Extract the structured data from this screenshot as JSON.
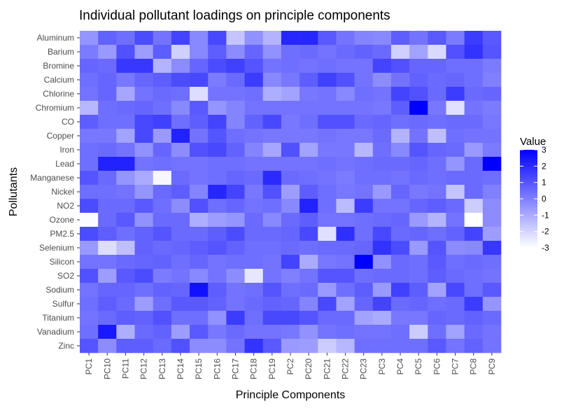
{
  "chart_data": {
    "type": "heatmap",
    "title": "Individual pollutant loadings on principle components",
    "xlabel": "Principle Components",
    "ylabel": "Pollutants",
    "x_categories": [
      "PC1",
      "PC10",
      "PC11",
      "PC12",
      "PC13",
      "PC14",
      "PC15",
      "PC16",
      "PC17",
      "PC18",
      "PC19",
      "PC2",
      "PC20",
      "PC21",
      "PC22",
      "PC23",
      "PC3",
      "PC4",
      "PC5",
      "PC6",
      "PC7",
      "PC8",
      "PC9"
    ],
    "y_categories": [
      "Aluminum",
      "Barium",
      "Bromine",
      "Calcium",
      "Chlorine",
      "Chromium",
      "CO",
      "Copper",
      "Iron",
      "Lead",
      "Manganese",
      "Nickel",
      "NO2",
      "Ozone",
      "PM2.5",
      "Selenium",
      "Silicon",
      "SO2",
      "Sodium",
      "Sulfur",
      "Titanium",
      "Vanadium",
      "Zinc"
    ],
    "values": [
      [
        -0.5,
        0.7,
        0.4,
        1.2,
        0.3,
        1.4,
        -0.2,
        1.3,
        -1.6,
        -0.4,
        -1.2,
        2.1,
        2.1,
        0.9,
        0.3,
        -0.1,
        -0.2,
        0.8,
        0.3,
        0.9,
        0.1,
        1.6,
        0.9
      ],
      [
        0.1,
        -0.6,
        1.1,
        -0.7,
        0.8,
        -1.9,
        -0.2,
        0.8,
        -0.3,
        0.6,
        -0.4,
        0.4,
        0.5,
        0.3,
        0.5,
        0.7,
        0.5,
        -1.9,
        -0.8,
        -2.1,
        1.1,
        1.8,
        1.0
      ],
      [
        0.6,
        0.5,
        1.7,
        1.7,
        -1.2,
        -0.3,
        0.6,
        1.2,
        1.5,
        1.0,
        0.3,
        0.4,
        0.3,
        0.4,
        0.3,
        0.3,
        1.4,
        1.1,
        0.6,
        0.6,
        0.4,
        0.4,
        0.1
      ],
      [
        0.4,
        0.6,
        0.2,
        0.6,
        0.8,
        1.2,
        1.3,
        0.1,
        0.5,
        1.6,
        -0.2,
        0.2,
        0.8,
        1.5,
        1.1,
        0.3,
        -0.3,
        0.3,
        0.7,
        0.5,
        0.6,
        0.4,
        0.0
      ],
      [
        0.3,
        0.6,
        -0.9,
        0.3,
        0.5,
        0.4,
        -2.2,
        0.3,
        0.3,
        0.4,
        -1.1,
        -0.8,
        0.2,
        0.3,
        -0.2,
        0.4,
        0.3,
        1.4,
        1.1,
        0.5,
        1.6,
        0.5,
        0.6
      ],
      [
        -1.3,
        0.4,
        0.5,
        0.6,
        0.4,
        -0.2,
        0.9,
        -0.5,
        -0.1,
        0.3,
        0.3,
        0.3,
        0.3,
        0.3,
        0.3,
        0.3,
        0.2,
        0.8,
        3.0,
        0.2,
        -2.3,
        0.3,
        0.1
      ],
      [
        0.8,
        0.4,
        0.4,
        1.3,
        1.5,
        0.4,
        0.8,
        1.4,
        -0.1,
        0.7,
        1.3,
        0.2,
        0.4,
        1.1,
        1.1,
        0.5,
        0.6,
        0.4,
        0.5,
        0.4,
        0.5,
        0.5,
        0.2
      ],
      [
        0.2,
        0.2,
        -0.8,
        1.3,
        -0.6,
        2.2,
        0.3,
        1.0,
        0.4,
        0.3,
        0.2,
        0.2,
        0.2,
        0.3,
        0.2,
        0.2,
        0.5,
        -1.2,
        0.3,
        -1.5,
        0.4,
        0.3,
        0.3
      ],
      [
        0.4,
        0.5,
        0.3,
        -0.4,
        0.6,
        -0.3,
        1.1,
        1.3,
        0.7,
        -0.1,
        -0.9,
        1.1,
        -0.8,
        0.2,
        0.2,
        -1.3,
        0.4,
        -0.2,
        1.0,
        0.6,
        0.5,
        -0.6,
        0.1
      ],
      [
        0.4,
        2.2,
        2.2,
        0.3,
        0.4,
        0.3,
        0.3,
        0.4,
        0.4,
        0.3,
        0.3,
        0.3,
        0.3,
        0.4,
        0.3,
        0.4,
        0.5,
        0.5,
        0.6,
        0.4,
        -0.5,
        0.5,
        3.1
      ],
      [
        1.0,
        0.5,
        -0.5,
        -1.0,
        -2.8,
        0.5,
        0.3,
        0.4,
        0.6,
        0.5,
        2.0,
        0.5,
        0.4,
        0.3,
        0.1,
        0.4,
        0.4,
        0.3,
        0.5,
        0.4,
        0.5,
        0.5,
        0.4
      ],
      [
        0.4,
        0.4,
        0.3,
        -0.5,
        0.5,
        0.8,
        -0.1,
        2.1,
        1.4,
        0.2,
        1.1,
        -0.7,
        0.8,
        0.4,
        0.2,
        0.3,
        -0.6,
        0.6,
        0.2,
        0.3,
        -1.6,
        0.5,
        0.0
      ],
      [
        1.2,
        0.5,
        0.5,
        0.9,
        0.4,
        -0.3,
        1.1,
        0.4,
        0.6,
        0.3,
        0.4,
        -0.2,
        2.2,
        0.4,
        -1.4,
        1.6,
        0.3,
        0.3,
        0.6,
        0.8,
        0.5,
        -1.8,
        -0.3
      ],
      [
        -2.9,
        0.5,
        0.9,
        -0.4,
        0.5,
        0.5,
        -1.1,
        -0.7,
        -0.5,
        0.5,
        -0.2,
        0.5,
        0.8,
        0.3,
        0.3,
        0.4,
        0.5,
        0.6,
        -0.6,
        -1.2,
        0.3,
        -3.0,
        -0.3
      ],
      [
        1.2,
        0.8,
        0.4,
        0.7,
        1.0,
        0.5,
        0.5,
        0.8,
        1.2,
        0.5,
        0.5,
        0.6,
        1.3,
        -2.3,
        1.9,
        0.4,
        1.3,
        0.5,
        0.6,
        0.4,
        0.7,
        1.4,
        -0.7
      ],
      [
        -0.6,
        -2.2,
        -1.5,
        0.7,
        0.5,
        0.6,
        0.8,
        1.0,
        0.7,
        0.4,
        0.4,
        0.5,
        0.4,
        0.5,
        0.5,
        0.6,
        1.8,
        1.2,
        -0.6,
        1.0,
        -0.3,
        -0.2,
        1.7
      ],
      [
        0.3,
        0.3,
        0.5,
        0.6,
        0.7,
        0.4,
        0.6,
        0.3,
        0.4,
        0.4,
        0.3,
        1.4,
        -1.0,
        0.2,
        0.3,
        3.0,
        -0.4,
        0.5,
        0.4,
        0.9,
        0.4,
        0.5,
        0.4
      ],
      [
        1.1,
        -0.7,
        0.9,
        1.2,
        0.1,
        0.3,
        -0.2,
        0.3,
        -0.3,
        -2.4,
        0.3,
        0.0,
        0.3,
        1.0,
        1.0,
        0.4,
        0.5,
        0.5,
        0.4,
        0.8,
        0.5,
        0.4,
        0.3
      ],
      [
        0.3,
        0.6,
        0.6,
        0.4,
        0.7,
        0.6,
        2.6,
        0.8,
        0.3,
        0.4,
        1.0,
        0.4,
        0.5,
        -0.6,
        0.4,
        0.8,
        -0.6,
        1.5,
        0.8,
        -0.8,
        1.3,
        0.4,
        0.9
      ],
      [
        0.4,
        0.8,
        0.5,
        -0.7,
        0.4,
        0.9,
        0.9,
        0.7,
        0.3,
        0.5,
        0.7,
        0.6,
        -0.1,
        1.3,
        -0.8,
        0.6,
        1.4,
        0.5,
        0.6,
        0.4,
        0.5,
        1.6,
        -0.5
      ],
      [
        0.3,
        0.5,
        0.8,
        0.7,
        1.1,
        0.4,
        0.4,
        -0.4,
        1.6,
        0.4,
        1.3,
        1.3,
        1.0,
        0.5,
        0.5,
        -0.8,
        -1.0,
        0.2,
        0.2,
        0.6,
        0.5,
        0.7,
        0.5
      ],
      [
        0.4,
        2.4,
        -1.1,
        0.5,
        0.7,
        -0.7,
        0.9,
        0.2,
        0.5,
        0.3,
        0.3,
        0.2,
        -0.4,
        0.3,
        0.4,
        0.3,
        0.3,
        0.4,
        -1.8,
        0.4,
        -0.8,
        0.5,
        0.3
      ],
      [
        1.0,
        -0.3,
        0.8,
        0.8,
        0.5,
        1.1,
        -0.3,
        -0.3,
        0.3,
        1.8,
        0.9,
        -0.6,
        -0.7,
        -1.8,
        -1.3,
        0.4,
        0.4,
        0.4,
        0.4,
        0.9,
        0.3,
        0.7,
        0.3
      ]
    ],
    "color_scale": {
      "low": "#ffffff",
      "high": "#0000ff",
      "domain": [
        -3,
        3
      ]
    },
    "legend": {
      "title": "Value",
      "ticks": [
        3,
        2,
        1,
        0,
        -1,
        -2,
        -3
      ],
      "position": "right"
    },
    "grid": true
  }
}
